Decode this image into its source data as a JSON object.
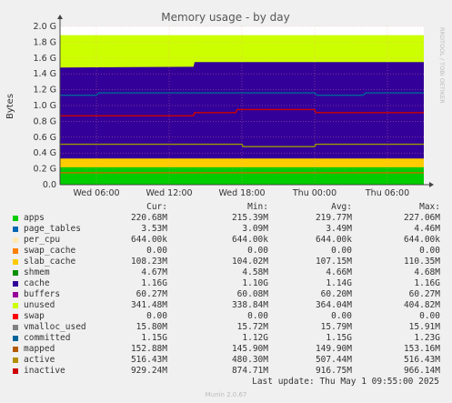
{
  "chart_data": {
    "type": "area",
    "title": "Memory usage - by day",
    "ylabel": "Bytes",
    "side_label": "RRDTOOL / TOBI OETIKER",
    "ylim": [
      0,
      2.0
    ],
    "yticks": [
      "0.0",
      "0.2 G",
      "0.4 G",
      "0.6 G",
      "0.8 G",
      "1.0 G",
      "1.2 G",
      "1.4 G",
      "1.6 G",
      "1.8 G",
      "2.0 G"
    ],
    "xticks": [
      "Wed 06:00",
      "Wed 12:00",
      "Wed 18:00",
      "Thu 00:00",
      "Thu 06:00"
    ],
    "x_range_hours": [
      0,
      30
    ],
    "xtick_hours": [
      3,
      9,
      15,
      21,
      27
    ],
    "stack": [
      {
        "name": "apps",
        "color": "#00cc00",
        "top": [
          [
            0,
            0.22
          ],
          [
            30,
            0.22
          ]
        ]
      },
      {
        "name": "slab_cache",
        "color": "#ffcc00",
        "top": [
          [
            0,
            0.33
          ],
          [
            30,
            0.33
          ]
        ]
      },
      {
        "name": "cache",
        "color": "#330099",
        "top": [
          [
            0,
            1.48
          ],
          [
            11,
            1.49
          ],
          [
            11.1,
            1.55
          ],
          [
            30,
            1.55
          ]
        ]
      },
      {
        "name": "unused",
        "color": "#ccff00",
        "top": [
          [
            0,
            1.89
          ],
          [
            30,
            1.89
          ]
        ]
      }
    ],
    "lines": [
      {
        "name": "committed",
        "color": "#006699",
        "points": [
          [
            0,
            1.13
          ],
          [
            3,
            1.13
          ],
          [
            3.2,
            1.16
          ],
          [
            21,
            1.16
          ],
          [
            21.2,
            1.13
          ],
          [
            25,
            1.13
          ],
          [
            25.2,
            1.16
          ],
          [
            30,
            1.16
          ]
        ]
      },
      {
        "name": "inactive",
        "color": "#cc0000",
        "points": [
          [
            0,
            0.87
          ],
          [
            11,
            0.87
          ],
          [
            11.1,
            0.91
          ],
          [
            14.5,
            0.91
          ],
          [
            14.6,
            0.95
          ],
          [
            21,
            0.95
          ],
          [
            21.1,
            0.91
          ],
          [
            30,
            0.91
          ]
        ]
      },
      {
        "name": "active",
        "color": "#999900",
        "points": [
          [
            0,
            0.51
          ],
          [
            15,
            0.51
          ],
          [
            15.1,
            0.48
          ],
          [
            21,
            0.48
          ],
          [
            21.1,
            0.51
          ],
          [
            30,
            0.51
          ]
        ]
      },
      {
        "name": "mapped",
        "color": "#cc6600",
        "points": [
          [
            0,
            0.15
          ],
          [
            30,
            0.15
          ]
        ]
      }
    ],
    "legend_headers": [
      "Cur:",
      "Min:",
      "Avg:",
      "Max:"
    ],
    "legend": [
      {
        "name": "apps",
        "color": "#00cc00",
        "cur": "220.68M",
        "min": "215.39M",
        "avg": "219.77M",
        "max": "227.06M"
      },
      {
        "name": "page_tables",
        "color": "#0066b3",
        "cur": "3.53M",
        "min": "3.09M",
        "avg": "3.49M",
        "max": "4.46M"
      },
      {
        "name": "per_cpu",
        "color": "#ffe9b3",
        "cur": "644.00k",
        "min": "644.00k",
        "avg": "644.00k",
        "max": "644.00k"
      },
      {
        "name": "swap_cache",
        "color": "#ff8000",
        "cur": "0.00",
        "min": "0.00",
        "avg": "0.00",
        "max": "0.00"
      },
      {
        "name": "slab_cache",
        "color": "#ffcc00",
        "cur": "108.23M",
        "min": "104.02M",
        "avg": "107.15M",
        "max": "110.35M"
      },
      {
        "name": "shmem",
        "color": "#008f00",
        "cur": "4.67M",
        "min": "4.58M",
        "avg": "4.66M",
        "max": "4.68M"
      },
      {
        "name": "cache",
        "color": "#330099",
        "cur": "1.16G",
        "min": "1.10G",
        "avg": "1.14G",
        "max": "1.16G"
      },
      {
        "name": "buffers",
        "color": "#990099",
        "cur": "60.27M",
        "min": "60.08M",
        "avg": "60.20M",
        "max": "60.27M"
      },
      {
        "name": "unused",
        "color": "#ccff00",
        "cur": "341.48M",
        "min": "338.84M",
        "avg": "364.04M",
        "max": "404.82M"
      },
      {
        "name": "swap",
        "color": "#ff0000",
        "cur": "0.00",
        "min": "0.00",
        "avg": "0.00",
        "max": "0.00"
      },
      {
        "name": "vmalloc_used",
        "color": "#808080",
        "cur": "15.80M",
        "min": "15.72M",
        "avg": "15.79M",
        "max": "15.91M"
      },
      {
        "name": "committed",
        "color": "#006699",
        "cur": "1.15G",
        "min": "1.12G",
        "avg": "1.15G",
        "max": "1.23G"
      },
      {
        "name": "mapped",
        "color": "#b35a00",
        "cur": "152.88M",
        "min": "145.90M",
        "avg": "149.90M",
        "max": "153.16M"
      },
      {
        "name": "active",
        "color": "#b38f00",
        "cur": "516.43M",
        "min": "480.30M",
        "avg": "507.44M",
        "max": "516.43M"
      },
      {
        "name": "inactive",
        "color": "#cc0000",
        "cur": "929.24M",
        "min": "874.71M",
        "avg": "916.75M",
        "max": "966.14M"
      }
    ]
  },
  "footer": {
    "last_update": "Last update: Thu May  1 09:55:00 2025",
    "munin": "Munin 2.0.67"
  }
}
